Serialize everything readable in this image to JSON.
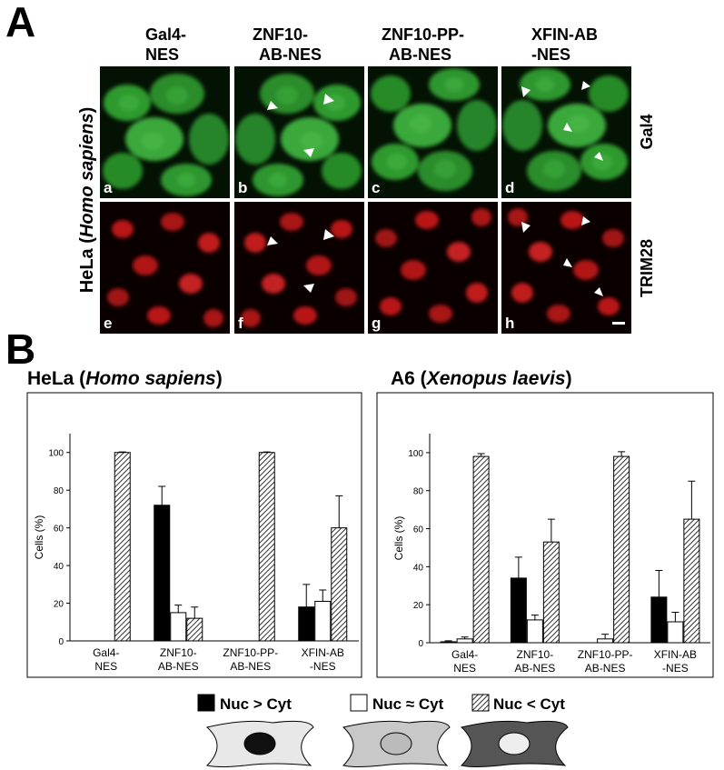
{
  "panel_a": {
    "label": "A",
    "columns": [
      [
        "Gal4-",
        "NES"
      ],
      [
        "ZNF10-",
        "AB-NES"
      ],
      [
        "ZNF10-PP-",
        "AB-NES"
      ],
      [
        "XFIN-AB",
        "-NES"
      ]
    ],
    "rows": [
      "Gal4",
      "TRIM28"
    ],
    "side_label": [
      "HeLa (",
      "Homo sapiens",
      ")"
    ],
    "panel_letters": [
      "a",
      "b",
      "c",
      "d",
      "e",
      "f",
      "g",
      "h"
    ]
  },
  "panel_b": {
    "label": "B"
  },
  "chart_data": [
    {
      "type": "bar",
      "title": [
        "HeLa (",
        "Homo sapiens",
        ")"
      ],
      "ylabel": "Cells (%)",
      "categories": [
        [
          "Gal4-",
          "NES"
        ],
        [
          "ZNF10-",
          "AB-NES"
        ],
        [
          "ZNF10-PP-",
          "AB-NES"
        ],
        [
          "XFIN-AB",
          "-NES"
        ]
      ],
      "series": [
        {
          "name": "Nuc > Cyt",
          "color": "#000000",
          "values": [
            0,
            72,
            0,
            18
          ],
          "errors": [
            0,
            10,
            0,
            12
          ]
        },
        {
          "name": "Nuc ≈ Cyt",
          "color": "#ffffff",
          "values": [
            0,
            15,
            0,
            21
          ],
          "errors": [
            0,
            4,
            0,
            6
          ]
        },
        {
          "name": "Nuc < Cyt",
          "color": "#ffffff",
          "hatch": true,
          "values": [
            100,
            12,
            100,
            60
          ],
          "errors": [
            0.3,
            6,
            0.3,
            17
          ]
        }
      ],
      "ylim": [
        0,
        110
      ],
      "yticks": [
        0,
        20,
        40,
        60,
        80,
        100
      ]
    },
    {
      "type": "bar",
      "title": [
        "A6 (",
        "Xenopus laevis",
        ")"
      ],
      "ylabel": "Cells (%)",
      "categories": [
        [
          "Gal4-",
          "NES"
        ],
        [
          "ZNF10-",
          "AB-NES"
        ],
        [
          "ZNF10-PP-",
          "AB-NES"
        ],
        [
          "XFIN-AB",
          "-NES"
        ]
      ],
      "series": [
        {
          "name": "Nuc > Cyt",
          "color": "#000000",
          "values": [
            0.5,
            34,
            0,
            24
          ],
          "errors": [
            0.5,
            11,
            0,
            14
          ]
        },
        {
          "name": "Nuc ≈ Cyt",
          "color": "#ffffff",
          "values": [
            2,
            12,
            2,
            11
          ],
          "errors": [
            1,
            2.5,
            2.5,
            5
          ]
        },
        {
          "name": "Nuc < Cyt",
          "color": "#ffffff",
          "hatch": true,
          "values": [
            98,
            53,
            98,
            65
          ],
          "errors": [
            1.5,
            12,
            2.5,
            20
          ]
        }
      ],
      "ylim": [
        0,
        110
      ],
      "yticks": [
        0,
        20,
        40,
        60,
        80,
        100
      ]
    }
  ]
}
